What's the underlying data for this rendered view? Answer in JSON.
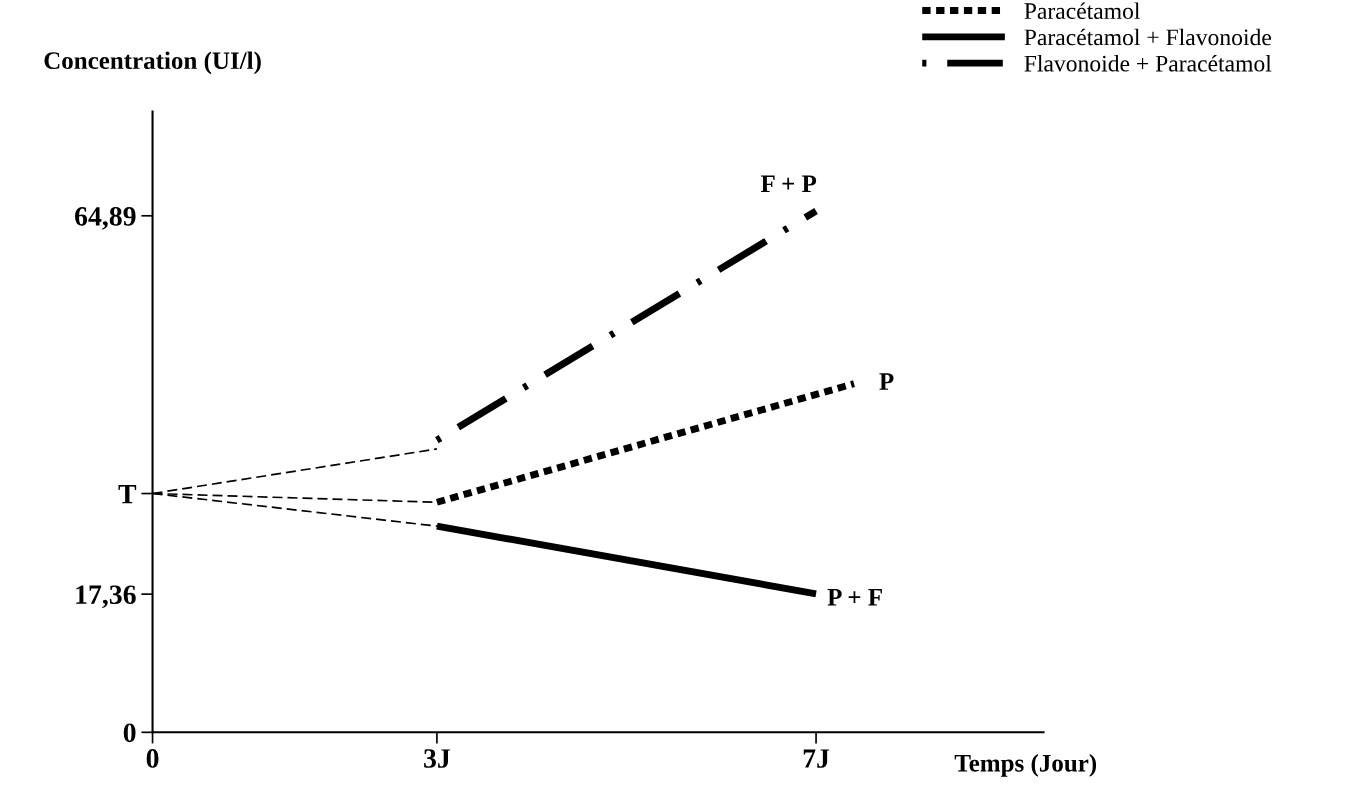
{
  "chart_data": {
    "type": "line",
    "xlabel": "Temps (Jour)",
    "ylabel": "Concentration (UI/l)",
    "xlim": [
      0,
      9.4
    ],
    "xticks": [
      {
        "value": 0,
        "label": "0"
      },
      {
        "value": 3,
        "label": "3J"
      },
      {
        "value": 7,
        "label": "7J"
      }
    ],
    "ylim": [
      0,
      78
    ],
    "yticks": [
      {
        "value": 0,
        "label": "0"
      },
      {
        "value": 17.36,
        "label": "17,36"
      },
      {
        "value": 30,
        "label": "T"
      },
      {
        "value": 64.89,
        "label": "64,89"
      }
    ],
    "series": [
      {
        "x": [
          0,
          3
        ],
        "values": [
          30,
          35.6
        ],
        "color": "#000000",
        "line_style": "dashed"
      },
      {
        "x": [
          0,
          3
        ],
        "values": [
          30,
          28.9
        ],
        "color": "#000000",
        "line_style": "dashed"
      },
      {
        "x": [
          0,
          3
        ],
        "values": [
          30,
          25.9
        ],
        "color": "#000000",
        "line_style": "dashed"
      },
      {
        "name": "Paracétamol",
        "x": [
          3,
          7.4
        ],
        "values": [
          28.9,
          43.8
        ],
        "color": "#000000",
        "line_style": "dotted"
      },
      {
        "name": "Paracétamol + Flavonoide",
        "x": [
          3,
          7
        ],
        "values": [
          25.9,
          17.4
        ],
        "color": "#000000",
        "line_style": "solid"
      },
      {
        "name": "Flavonoide + Paracétamol",
        "x": [
          3,
          7
        ],
        "values": [
          36.7,
          65.5
        ],
        "color": "#000000",
        "line_style": "dashdot"
      }
    ],
    "annotations": [
      "F + P",
      "P",
      "P + F"
    ],
    "legend": "top right",
    "grid": false
  }
}
